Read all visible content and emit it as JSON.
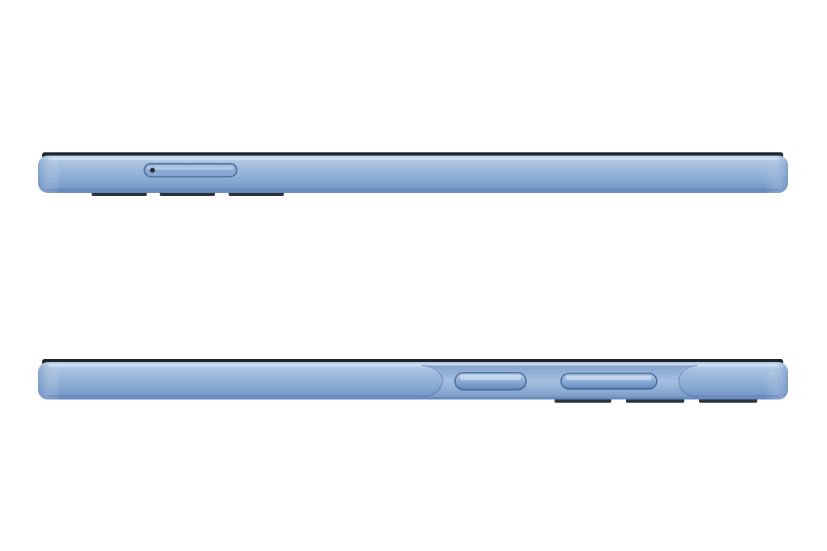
{
  "image": {
    "subject": "phone-side-profiles",
    "background_color": "#ffffff",
    "frame_color": "#8fb0d6",
    "frame_highlight_color": "#c3d7ec",
    "frame_shadow_color": "#5f86b8",
    "screen_edge_color": "#1c2430",
    "camera_bump_color": "#2a323c"
  },
  "views": [
    {
      "name": "top-edge-view",
      "features": [
        "sim-tray",
        "sim-eject-pinhole",
        "camera-bumps"
      ]
    },
    {
      "name": "bottom-edge-view",
      "features": [
        "power-button",
        "volume-rocker",
        "camera-bumps"
      ]
    }
  ]
}
